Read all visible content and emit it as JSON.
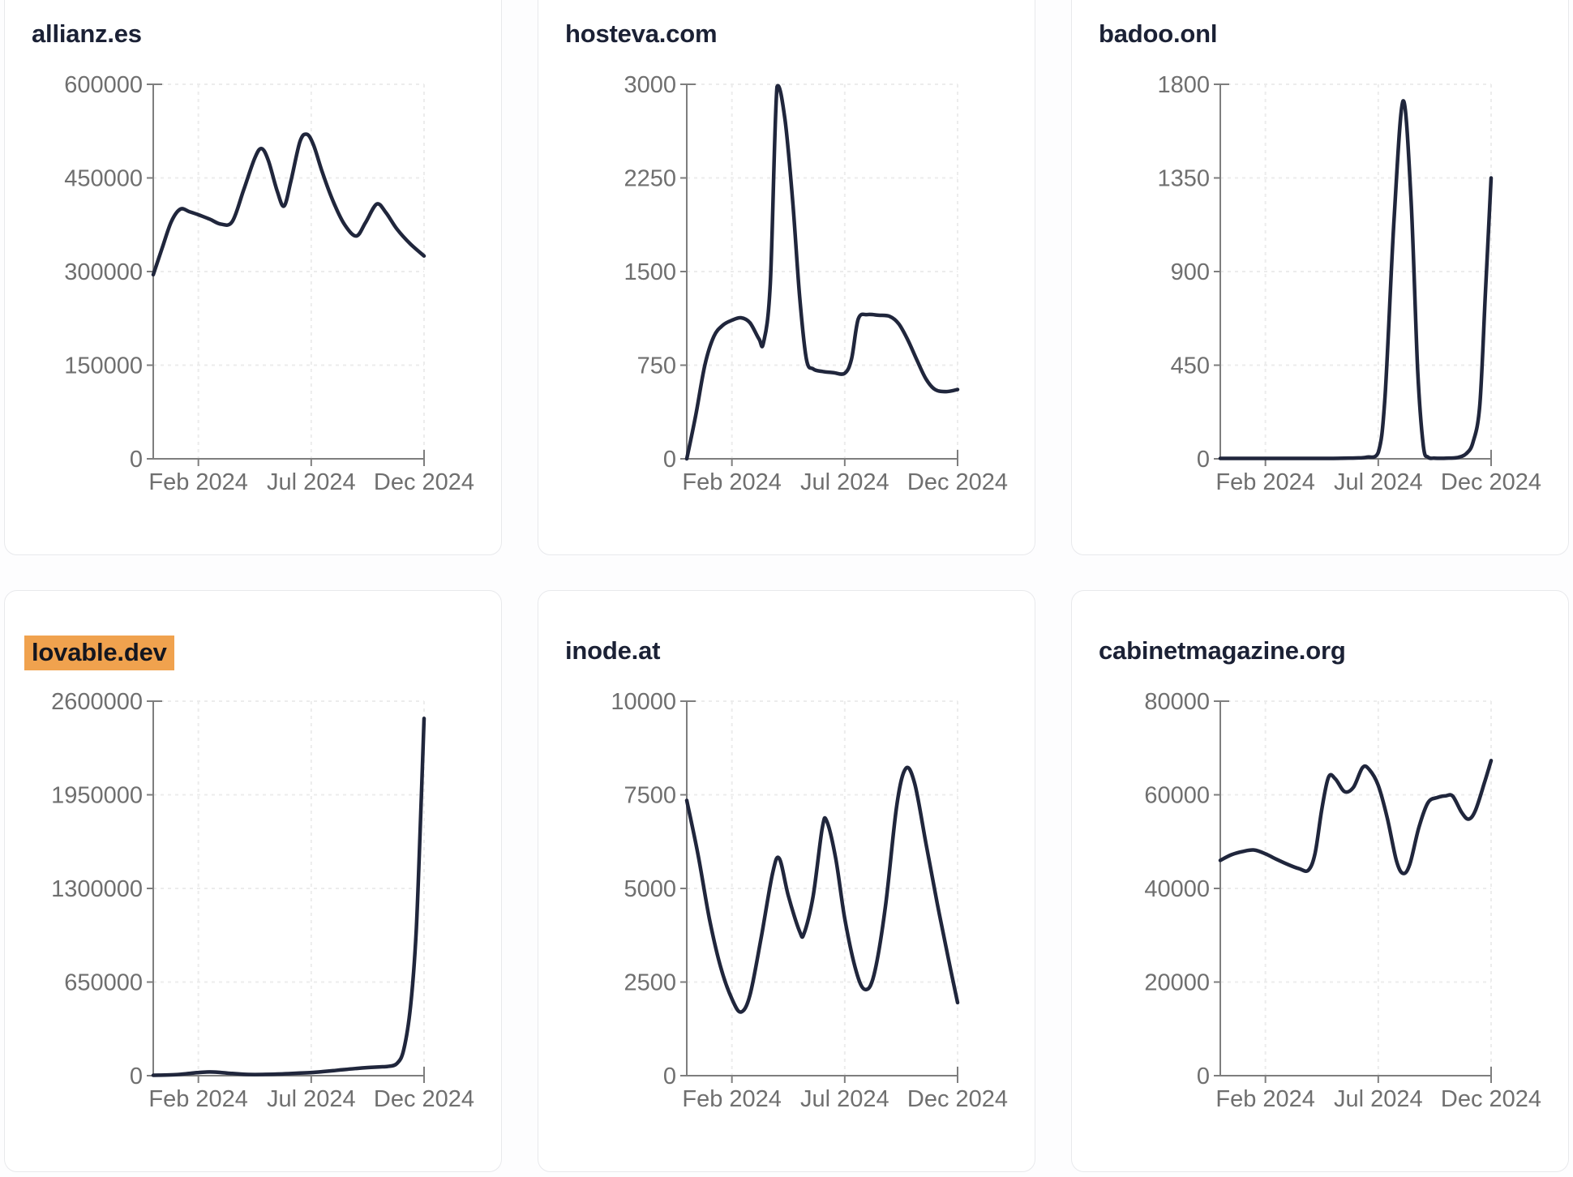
{
  "colors": {
    "line": "#20263c",
    "title_text": "#1b2135",
    "highlight_background": "#f0a24e",
    "axis": "#7e7e7e",
    "tick_label": "#6f6f6f",
    "gridline": "#ececec",
    "card_background": "#ffffff",
    "card_border": "#e8e9ec"
  },
  "x_axis": {
    "tick_labels": [
      "Feb 2024",
      "Jul 2024",
      "Dec 2024"
    ],
    "tick_months": [
      2,
      7,
      12
    ],
    "range_months": [
      0,
      12
    ]
  },
  "chart_data": [
    {
      "type": "line",
      "title": "allianz.es",
      "highlighted": false,
      "ylim": [
        0,
        600000
      ],
      "y_ticks": [
        0,
        150000,
        300000,
        450000,
        600000
      ],
      "x_ticks": [
        {
          "label": "Feb 2024",
          "m": 2
        },
        {
          "label": "Jul 2024",
          "m": 7
        },
        {
          "label": "Dec 2024",
          "m": 12
        }
      ],
      "series": [
        [
          0,
          295000
        ],
        [
          0.4,
          338000
        ],
        [
          0.8,
          380000
        ],
        [
          1.2,
          400000
        ],
        [
          1.6,
          396000
        ],
        [
          2,
          391000
        ],
        [
          2.5,
          384000
        ],
        [
          3,
          376000
        ],
        [
          3.5,
          380000
        ],
        [
          4,
          430000
        ],
        [
          4.5,
          482000
        ],
        [
          4.8,
          497000
        ],
        [
          5.1,
          478000
        ],
        [
          5.5,
          428000
        ],
        [
          5.8,
          405000
        ],
        [
          6.1,
          445000
        ],
        [
          6.5,
          508000
        ],
        [
          6.8,
          520000
        ],
        [
          7.1,
          503000
        ],
        [
          7.5,
          458000
        ],
        [
          8,
          410000
        ],
        [
          8.5,
          374000
        ],
        [
          9,
          357000
        ],
        [
          9.4,
          378000
        ],
        [
          9.9,
          408000
        ],
        [
          10.3,
          395000
        ],
        [
          10.8,
          368000
        ],
        [
          11.4,
          344000
        ],
        [
          12,
          325000
        ]
      ]
    },
    {
      "type": "line",
      "title": "hosteva.com",
      "highlighted": false,
      "ylim": [
        0,
        3000
      ],
      "y_ticks": [
        0,
        750,
        1500,
        2250,
        3000
      ],
      "x_ticks": [
        {
          "label": "Feb 2024",
          "m": 2
        },
        {
          "label": "Jul 2024",
          "m": 7
        },
        {
          "label": "Dec 2024",
          "m": 12
        }
      ],
      "series": [
        [
          0,
          0
        ],
        [
          0.4,
          350
        ],
        [
          0.8,
          750
        ],
        [
          1.2,
          980
        ],
        [
          1.6,
          1070
        ],
        [
          2,
          1110
        ],
        [
          2.4,
          1130
        ],
        [
          2.8,
          1090
        ],
        [
          3.2,
          960
        ],
        [
          3.4,
          930
        ],
        [
          3.7,
          1400
        ],
        [
          4,
          2980
        ],
        [
          4.35,
          2720
        ],
        [
          4.7,
          2050
        ],
        [
          5,
          1300
        ],
        [
          5.3,
          800
        ],
        [
          5.6,
          720
        ],
        [
          6,
          700
        ],
        [
          6.5,
          690
        ],
        [
          7,
          685
        ],
        [
          7.3,
          800
        ],
        [
          7.6,
          1120
        ],
        [
          8,
          1155
        ],
        [
          8.5,
          1150
        ],
        [
          9,
          1140
        ],
        [
          9.4,
          1080
        ],
        [
          9.8,
          950
        ],
        [
          10.2,
          790
        ],
        [
          10.6,
          640
        ],
        [
          11,
          555
        ],
        [
          11.5,
          538
        ],
        [
          12,
          555
        ]
      ]
    },
    {
      "type": "line",
      "title": "badoo.onl",
      "highlighted": false,
      "ylim": [
        0,
        1800
      ],
      "y_ticks": [
        0,
        450,
        900,
        1350,
        1800
      ],
      "x_ticks": [
        {
          "label": "Feb 2024",
          "m": 2
        },
        {
          "label": "Jul 2024",
          "m": 7
        },
        {
          "label": "Dec 2024",
          "m": 12
        }
      ],
      "series": [
        [
          0,
          2
        ],
        [
          0.5,
          2
        ],
        [
          1,
          2
        ],
        [
          1.5,
          2
        ],
        [
          2,
          2
        ],
        [
          2.5,
          2
        ],
        [
          3,
          2
        ],
        [
          3.5,
          2
        ],
        [
          4,
          2
        ],
        [
          4.5,
          2
        ],
        [
          5,
          2
        ],
        [
          5.5,
          3
        ],
        [
          6,
          4
        ],
        [
          6.5,
          8
        ],
        [
          7,
          30
        ],
        [
          7.3,
          300
        ],
        [
          7.7,
          1150
        ],
        [
          8.1,
          1720
        ],
        [
          8.45,
          1250
        ],
        [
          8.75,
          420
        ],
        [
          9,
          60
        ],
        [
          9.2,
          8
        ],
        [
          9.5,
          3
        ],
        [
          10,
          3
        ],
        [
          10.5,
          6
        ],
        [
          10.9,
          25
        ],
        [
          11.2,
          80
        ],
        [
          11.5,
          260
        ],
        [
          11.75,
          800
        ],
        [
          12,
          1350
        ]
      ]
    },
    {
      "type": "line",
      "title": "lovable.dev",
      "highlighted": true,
      "ylim": [
        0,
        2600000
      ],
      "y_ticks": [
        0,
        650000,
        1300000,
        1950000,
        2600000
      ],
      "x_ticks": [
        {
          "label": "Feb 2024",
          "m": 2
        },
        {
          "label": "Jul 2024",
          "m": 7
        },
        {
          "label": "Dec 2024",
          "m": 12
        }
      ],
      "series": [
        [
          0,
          3000
        ],
        [
          0.5,
          4000
        ],
        [
          1,
          7000
        ],
        [
          1.5,
          14000
        ],
        [
          2,
          22000
        ],
        [
          2.5,
          26000
        ],
        [
          3,
          22000
        ],
        [
          3.5,
          15000
        ],
        [
          4,
          10000
        ],
        [
          4.5,
          8000
        ],
        [
          5,
          9000
        ],
        [
          5.5,
          11000
        ],
        [
          6,
          14000
        ],
        [
          6.5,
          18000
        ],
        [
          7,
          22000
        ],
        [
          7.5,
          28000
        ],
        [
          8,
          35000
        ],
        [
          8.5,
          43000
        ],
        [
          9,
          50000
        ],
        [
          9.5,
          56000
        ],
        [
          10,
          61000
        ],
        [
          10.4,
          64000
        ],
        [
          10.8,
          85000
        ],
        [
          11.1,
          180000
        ],
        [
          11.4,
          480000
        ],
        [
          11.65,
          1000000
        ],
        [
          11.85,
          1800000
        ],
        [
          12,
          2480000
        ]
      ]
    },
    {
      "type": "line",
      "title": "inode.at",
      "highlighted": false,
      "ylim": [
        0,
        10000
      ],
      "y_ticks": [
        0,
        2500,
        5000,
        7500,
        10000
      ],
      "x_ticks": [
        {
          "label": "Feb 2024",
          "m": 2
        },
        {
          "label": "Jul 2024",
          "m": 7
        },
        {
          "label": "Dec 2024",
          "m": 12
        }
      ],
      "series": [
        [
          0,
          7350
        ],
        [
          0.5,
          5900
        ],
        [
          1,
          4200
        ],
        [
          1.5,
          2900
        ],
        [
          2,
          2050
        ],
        [
          2.4,
          1700
        ],
        [
          2.8,
          2150
        ],
        [
          3.3,
          3700
        ],
        [
          3.8,
          5400
        ],
        [
          4.1,
          5800
        ],
        [
          4.5,
          4800
        ],
        [
          5,
          3850
        ],
        [
          5.2,
          3800
        ],
        [
          5.6,
          4800
        ],
        [
          6,
          6600
        ],
        [
          6.2,
          6800
        ],
        [
          6.6,
          5800
        ],
        [
          7,
          4200
        ],
        [
          7.5,
          2800
        ],
        [
          7.9,
          2300
        ],
        [
          8.3,
          2700
        ],
        [
          8.8,
          4500
        ],
        [
          9.3,
          7200
        ],
        [
          9.7,
          8200
        ],
        [
          10.1,
          7800
        ],
        [
          10.6,
          6200
        ],
        [
          11.1,
          4600
        ],
        [
          11.6,
          3100
        ],
        [
          12,
          1950
        ]
      ]
    },
    {
      "type": "line",
      "title": "cabinetmagazine.org",
      "highlighted": false,
      "ylim": [
        0,
        80000
      ],
      "y_ticks": [
        0,
        20000,
        40000,
        60000,
        80000
      ],
      "x_ticks": [
        {
          "label": "Feb 2024",
          "m": 2
        },
        {
          "label": "Jul 2024",
          "m": 7
        },
        {
          "label": "Dec 2024",
          "m": 12
        }
      ],
      "series": [
        [
          0,
          46000
        ],
        [
          0.5,
          47200
        ],
        [
          1,
          47900
        ],
        [
          1.5,
          48200
        ],
        [
          2,
          47400
        ],
        [
          2.5,
          46200
        ],
        [
          3,
          45100
        ],
        [
          3.5,
          44200
        ],
        [
          3.9,
          43900
        ],
        [
          4.2,
          47500
        ],
        [
          4.5,
          57000
        ],
        [
          4.8,
          63800
        ],
        [
          5.1,
          63400
        ],
        [
          5.5,
          60700
        ],
        [
          5.9,
          61600
        ],
        [
          6.3,
          65800
        ],
        [
          6.6,
          65400
        ],
        [
          7,
          62000
        ],
        [
          7.4,
          55000
        ],
        [
          7.8,
          46000
        ],
        [
          8.1,
          43200
        ],
        [
          8.4,
          45200
        ],
        [
          8.8,
          53000
        ],
        [
          9.2,
          58300
        ],
        [
          9.6,
          59400
        ],
        [
          10,
          59800
        ],
        [
          10.3,
          59700
        ],
        [
          10.7,
          56200
        ],
        [
          11,
          54800
        ],
        [
          11.3,
          56600
        ],
        [
          11.7,
          62500
        ],
        [
          12,
          67300
        ]
      ]
    }
  ]
}
